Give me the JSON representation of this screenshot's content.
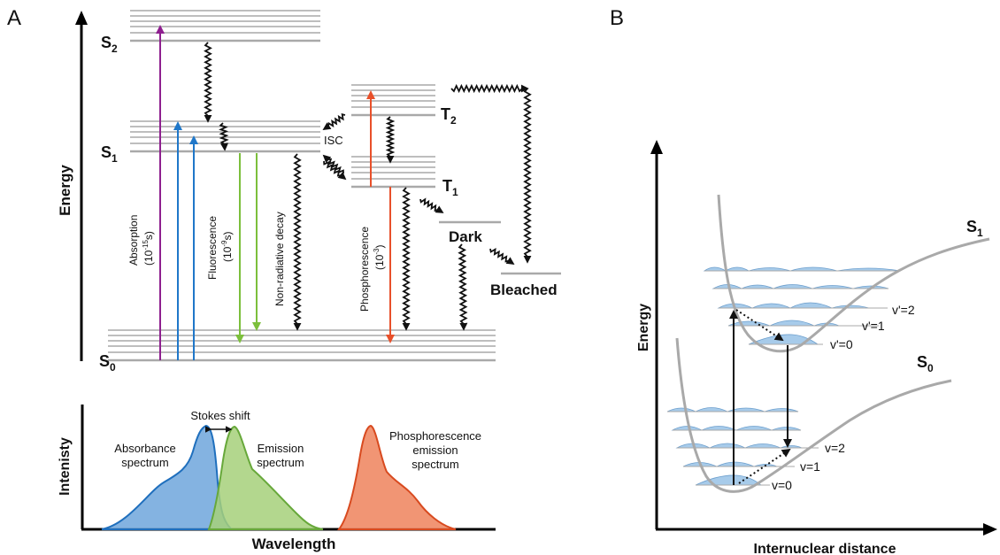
{
  "panel_a": {
    "label": "A",
    "energy_axis": "Energy",
    "states": {
      "S2": {
        "name": "S",
        "sub": "2"
      },
      "S1": {
        "name": "S",
        "sub": "1"
      },
      "S0": {
        "name": "S",
        "sub": "0"
      },
      "T2": {
        "name": "T",
        "sub": "2"
      },
      "T1": {
        "name": "T",
        "sub": "1"
      },
      "dark": "Dark",
      "bleached": "Bleached"
    },
    "isc": "ISC",
    "processes": {
      "absorption": {
        "name": "Absorption",
        "time": "(10",
        "exp": "-15",
        "unit": "s)"
      },
      "fluorescence": {
        "name": "Fluorescence",
        "time": "(10",
        "exp": "-9",
        "unit": "s)"
      },
      "nonradiative": "Non-radiative decay",
      "phosphorescence": {
        "name": "Phosphorescence",
        "time": "(10",
        "exp": "-3",
        "unit": ")"
      }
    },
    "spectrum": {
      "y_axis": "Intenisty",
      "x_axis": "Wavelength",
      "stokes_shift": "Stokes shift",
      "absorbance": [
        "Absorbance",
        "spectrum"
      ],
      "emission": [
        "Emission",
        "spectrum"
      ],
      "phosphorescence": [
        "Phosphorescence",
        "emission",
        "spectrum"
      ]
    },
    "colors": {
      "absorption": "#8e1f8f",
      "blue": "#1f77c9",
      "green": "#7cbf3c",
      "phosphorescence": "#e8502a",
      "level": "#a9a9a9"
    }
  },
  "panel_b": {
    "label": "B",
    "y_axis": "Energy",
    "x_axis": "Internuclear distance",
    "upper_curve": {
      "name": "S",
      "sub": "1"
    },
    "lower_curve": {
      "name": "S",
      "sub": "0"
    },
    "upper_levels": [
      "v'=2",
      "v'=1",
      "v'=0"
    ],
    "lower_levels": [
      "v=2",
      "v=1",
      "v=0"
    ],
    "colors": {
      "curve": "#a9a9a9",
      "wave": "#8ab9e3"
    }
  }
}
